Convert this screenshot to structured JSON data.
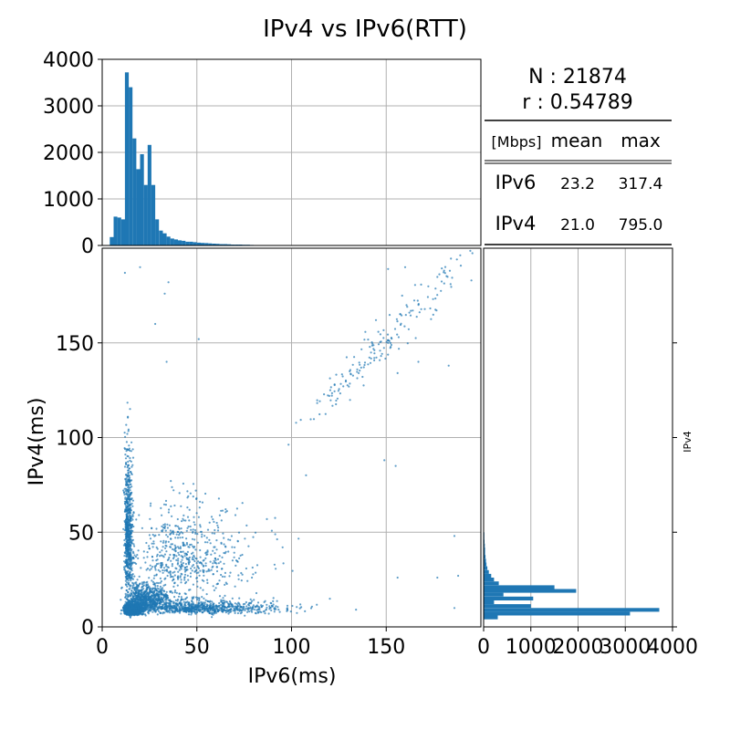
{
  "title": "IPv4 vs IPv6(RTT)",
  "colors": {
    "series": "#1f77b4",
    "grid": "#b0b0b0",
    "axis": "#000000"
  },
  "stats": {
    "n_text": "N : 21874",
    "r_text": "r : 0.54789",
    "table_header": [
      "[Mbps]",
      "mean",
      "max"
    ],
    "table_rows": [
      {
        "label": "IPv6",
        "mean": "23.2",
        "max": "317.4"
      },
      {
        "label": "IPv4",
        "mean": "21.0",
        "max": "795.0"
      }
    ]
  },
  "chart_data": [
    {
      "type": "scatter",
      "name": "scatter",
      "xlabel": "IPv6(ms)",
      "ylabel": "IPv4(ms)",
      "xlim": [
        0,
        200
      ],
      "ylim": [
        0,
        200
      ],
      "xticks": [
        0,
        50,
        100,
        150
      ],
      "yticks": [
        0,
        50,
        100,
        150
      ],
      "grid": true,
      "n": 21874,
      "clusters": [
        {
          "cx": 14,
          "cy": 8,
          "sx": 3,
          "sy": 2,
          "count": 1300
        },
        {
          "cx": 20,
          "cy": 12,
          "sx": 8,
          "sy": 5,
          "count": 800
        },
        {
          "cx": 13,
          "cy": 40,
          "sx": 1.5,
          "sy": 25,
          "count": 700
        },
        {
          "cx": 45,
          "cy": 9,
          "sx": 25,
          "sy": 2.5,
          "count": 700
        },
        {
          "cx": 35,
          "cy": 30,
          "sx": 22,
          "sy": 18,
          "count": 600
        },
        {
          "cx": 150,
          "cy": 152,
          "sx": 22,
          "sy": 22,
          "count": 180
        }
      ],
      "outliers": [
        [
          20,
          190
        ],
        [
          12,
          187
        ],
        [
          35,
          182
        ],
        [
          33,
          176
        ],
        [
          28,
          160
        ],
        [
          51,
          152
        ],
        [
          34,
          140
        ],
        [
          160,
          190
        ],
        [
          151,
          189
        ],
        [
          184,
          181
        ],
        [
          195,
          183
        ],
        [
          149,
          88
        ],
        [
          155,
          85
        ],
        [
          156,
          134
        ],
        [
          167,
          140
        ],
        [
          183,
          138
        ],
        [
          186,
          48
        ],
        [
          186,
          10
        ],
        [
          188,
          27
        ],
        [
          177,
          26
        ],
        [
          156,
          26
        ]
      ]
    },
    {
      "type": "bar",
      "name": "IPv6 histogram",
      "orientation": "vertical",
      "bin_width": 2,
      "bin_start": 4,
      "ylim": [
        0,
        4000
      ],
      "yticks": [
        0,
        1000,
        2000,
        3000,
        4000
      ],
      "values": [
        180,
        620,
        600,
        560,
        3720,
        3400,
        2300,
        1640,
        1960,
        1300,
        2160,
        1300,
        560,
        320,
        260,
        190,
        150,
        130,
        110,
        100,
        80,
        80,
        70,
        60,
        55,
        50,
        45,
        40,
        35,
        30,
        30,
        25,
        20,
        20,
        20,
        15,
        15,
        12,
        10,
        10
      ]
    },
    {
      "type": "bar",
      "name": "IPv4 histogram",
      "orientation": "horizontal",
      "bin_width": 2,
      "bin_start": 4,
      "xlim": [
        0,
        4000
      ],
      "xticks": [
        0,
        1000,
        2000,
        3000,
        4000
      ],
      "ylabel": "IPv4",
      "values": [
        300,
        3100,
        3720,
        1000,
        220,
        1050,
        420,
        1960,
        1500,
        320,
        220,
        160,
        110,
        80,
        60,
        50,
        40,
        30,
        30,
        25,
        20,
        15,
        15,
        10,
        10,
        8,
        8,
        6,
        6,
        5,
        5,
        4,
        4,
        3,
        3,
        3,
        2,
        2,
        2,
        2
      ]
    }
  ]
}
